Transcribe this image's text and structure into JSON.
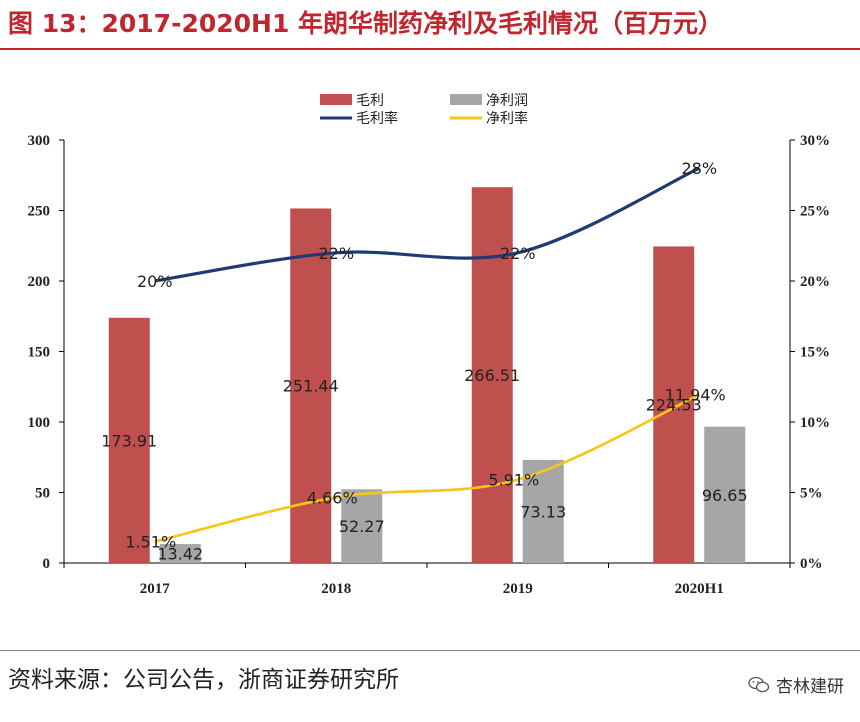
{
  "header": {
    "title": "图 13：2017-2020H1 年朗华制药净利及毛利情况（百万元）"
  },
  "footer": {
    "source": "资料来源：公司公告，浙商证券研究所",
    "watermark": "杏林建研",
    "watermark_icon": "wechat-icon"
  },
  "colors": {
    "title": "#c0262d",
    "gross_profit": "#c0504d",
    "net_profit": "#a6a6a6",
    "gross_margin": "#1f3b73",
    "net_margin": "#f5c518"
  },
  "chart_data": {
    "type": "bar",
    "title": "",
    "categories": [
      "2017",
      "2018",
      "2019",
      "2020H1"
    ],
    "series": [
      {
        "name": "毛利",
        "kind": "bar",
        "axis": "left",
        "values": [
          173.91,
          251.44,
          266.51,
          224.53
        ],
        "labels": [
          "173.91",
          "251.44",
          "266.51",
          "224.53"
        ]
      },
      {
        "name": "净利润",
        "kind": "bar",
        "axis": "left",
        "values": [
          13.42,
          52.27,
          73.13,
          96.65
        ],
        "labels": [
          "13.42",
          "52.27",
          "73.13",
          "96.65"
        ]
      },
      {
        "name": "毛利率",
        "kind": "line",
        "axis": "right",
        "values": [
          20,
          22,
          22,
          28
        ],
        "labels": [
          "20%",
          "22%",
          "22%",
          "28%"
        ]
      },
      {
        "name": "净利率",
        "kind": "line",
        "axis": "right",
        "values": [
          1.51,
          4.66,
          5.91,
          11.94
        ],
        "labels": [
          "1.51%",
          "4.66%",
          "5.91%",
          "11.94%"
        ]
      }
    ],
    "y_left": {
      "min": 0,
      "max": 300,
      "ticks": [
        0,
        50,
        100,
        150,
        200,
        250,
        300
      ],
      "tick_labels": [
        "0",
        "50",
        "100",
        "150",
        "200",
        "250",
        "300"
      ]
    },
    "y_right": {
      "min": 0,
      "max": 30,
      "ticks": [
        0,
        5,
        10,
        15,
        20,
        25,
        30
      ],
      "tick_labels": [
        "0%",
        "5%",
        "10%",
        "15%",
        "20%",
        "25%",
        "30%"
      ]
    },
    "legend": {
      "position": "top-center",
      "entries": [
        "毛利",
        "净利润",
        "毛利率",
        "净利率"
      ]
    },
    "grid": false
  }
}
